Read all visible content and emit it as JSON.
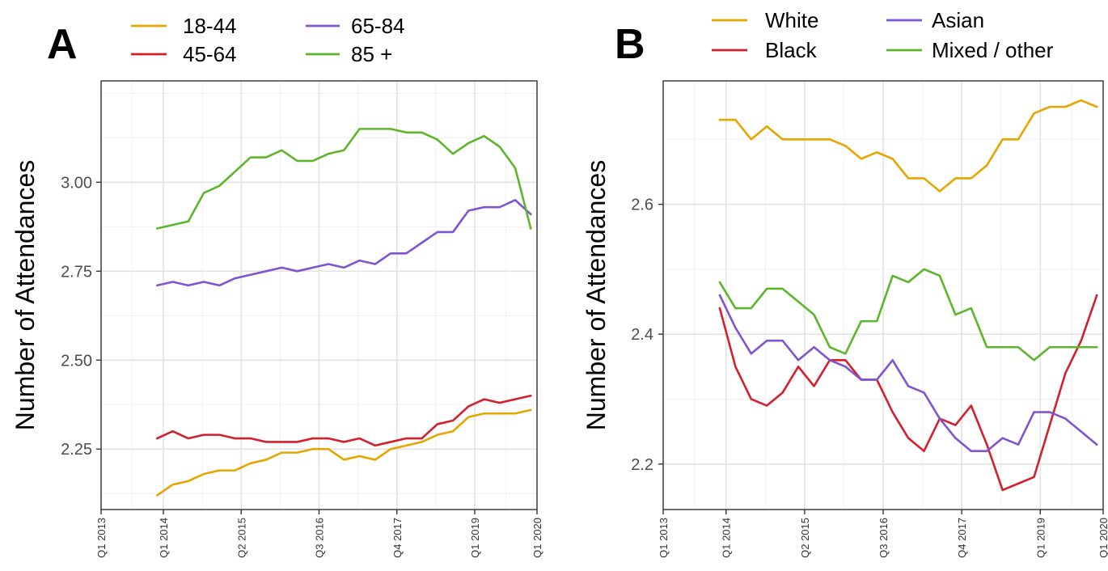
{
  "chart_data": [
    {
      "panel": "A",
      "type": "line",
      "ylabel": "Number of Attendances",
      "xlabel": "",
      "ylim": [
        2.08,
        3.285
      ],
      "yticks": [
        2.25,
        2.5,
        2.75,
        3.0
      ],
      "ytick_labels": [
        "2.25",
        "2.50",
        "2.75",
        "3.00"
      ],
      "xticks": [
        "Q1 2013",
        "Q1 2014",
        "Q2 2015",
        "Q3 2016",
        "Q4 2017",
        "Q1 2019",
        "Q1 2020"
      ],
      "grid": true,
      "legend_position": "top",
      "colors": {
        "18-44": "#e5a600",
        "45-64": "#d3202b",
        "65-84": "#8054d0",
        "85 +": "#5db52c"
      },
      "series": [
        {
          "name": "18-44",
          "color": "#e5a600",
          "values": [
            2.12,
            2.15,
            2.16,
            2.18,
            2.19,
            2.19,
            2.21,
            2.22,
            2.24,
            2.24,
            2.25,
            2.25,
            2.22,
            2.23,
            2.22,
            2.25,
            2.26,
            2.27,
            2.29,
            2.3,
            2.34,
            2.35,
            2.35,
            2.35,
            2.36
          ]
        },
        {
          "name": "45-64",
          "color": "#d3202b",
          "values": [
            2.28,
            2.3,
            2.28,
            2.29,
            2.29,
            2.28,
            2.28,
            2.27,
            2.27,
            2.27,
            2.28,
            2.28,
            2.27,
            2.28,
            2.26,
            2.27,
            2.28,
            2.28,
            2.32,
            2.33,
            2.37,
            2.39,
            2.38,
            2.39,
            2.4
          ]
        },
        {
          "name": "65-84",
          "color": "#8054d0",
          "values": [
            2.71,
            2.72,
            2.71,
            2.72,
            2.71,
            2.73,
            2.74,
            2.75,
            2.76,
            2.75,
            2.76,
            2.77,
            2.76,
            2.78,
            2.77,
            2.8,
            2.8,
            2.83,
            2.86,
            2.86,
            2.92,
            2.93,
            2.93,
            2.95,
            2.91
          ]
        },
        {
          "name": "85 +",
          "color": "#5db52c",
          "values": [
            2.87,
            2.88,
            2.89,
            2.97,
            2.99,
            3.03,
            3.07,
            3.07,
            3.09,
            3.06,
            3.06,
            3.08,
            3.09,
            3.15,
            3.15,
            3.15,
            3.14,
            3.14,
            3.12,
            3.08,
            3.11,
            3.13,
            3.1,
            3.04,
            2.87
          ]
        }
      ]
    },
    {
      "panel": "B",
      "type": "line",
      "ylabel": "Number of Attendances",
      "xlabel": "",
      "ylim": [
        2.13,
        2.79
      ],
      "yticks": [
        2.2,
        2.4,
        2.6
      ],
      "ytick_labels": [
        "2.2",
        "2.4",
        "2.6"
      ],
      "xticks": [
        "Q1 2013",
        "Q1 2014",
        "Q2 2015",
        "Q3 2016",
        "Q4 2017",
        "Q1 2019",
        "Q1 2020"
      ],
      "grid": true,
      "legend_position": "top",
      "colors": {
        "White": "#e5a600",
        "Black": "#d3202b",
        "Asian": "#8054d0",
        "Mixed / other": "#5db52c"
      },
      "series": [
        {
          "name": "White",
          "color": "#e5a600",
          "values": [
            2.73,
            2.73,
            2.7,
            2.72,
            2.7,
            2.7,
            2.7,
            2.7,
            2.69,
            2.67,
            2.68,
            2.67,
            2.64,
            2.64,
            2.62,
            2.64,
            2.64,
            2.66,
            2.7,
            2.7,
            2.74,
            2.75,
            2.75,
            2.76,
            2.75
          ]
        },
        {
          "name": "Black",
          "color": "#d3202b",
          "values": [
            2.44,
            2.35,
            2.3,
            2.29,
            2.31,
            2.35,
            2.32,
            2.36,
            2.36,
            2.33,
            2.33,
            2.28,
            2.24,
            2.22,
            2.27,
            2.26,
            2.29,
            2.23,
            2.16,
            2.17,
            2.18,
            2.26,
            2.34,
            2.39,
            2.46
          ]
        },
        {
          "name": "Asian",
          "color": "#8054d0",
          "values": [
            2.46,
            2.41,
            2.37,
            2.39,
            2.39,
            2.36,
            2.38,
            2.36,
            2.35,
            2.33,
            2.33,
            2.36,
            2.32,
            2.31,
            2.27,
            2.24,
            2.22,
            2.22,
            2.24,
            2.23,
            2.28,
            2.28,
            2.27,
            2.25,
            2.23
          ]
        },
        {
          "name": "Mixed / other",
          "color": "#5db52c",
          "values": [
            2.48,
            2.44,
            2.44,
            2.47,
            2.47,
            2.45,
            2.43,
            2.38,
            2.37,
            2.42,
            2.42,
            2.49,
            2.48,
            2.5,
            2.49,
            2.43,
            2.44,
            2.38,
            2.38,
            2.38,
            2.36,
            2.38,
            2.38,
            2.38,
            2.38
          ]
        }
      ]
    }
  ]
}
